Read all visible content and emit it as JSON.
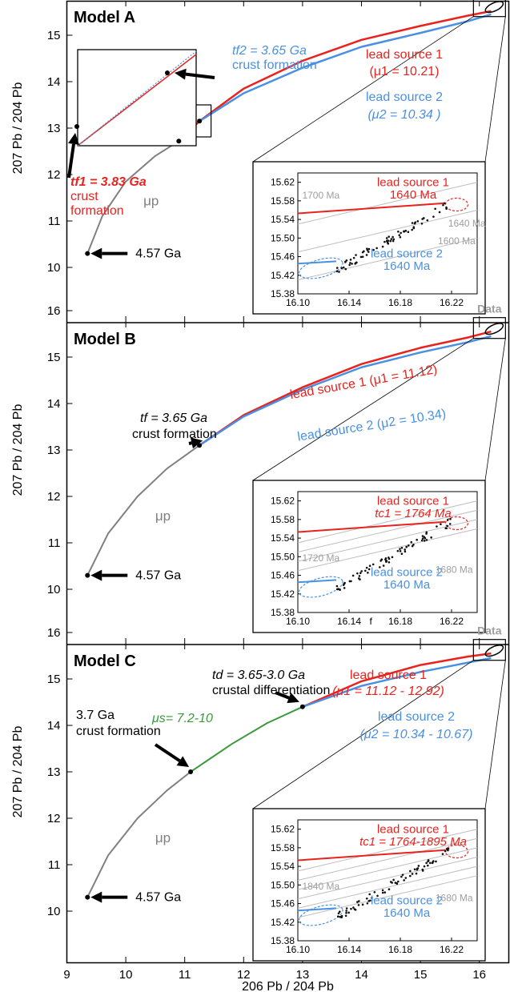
{
  "chart_data": [
    {
      "type": "line",
      "panel_title": "Model A",
      "ylabel": "207 Pb / 204 Pb",
      "xlim": [
        9,
        16.5
      ],
      "ylim": [
        9.8,
        16.4
      ],
      "yticks": [
        "10",
        "11",
        "12",
        "13",
        "14",
        "15",
        "16"
      ],
      "series": [
        {
          "name": "μp",
          "color": "#808080",
          "x": [
            9.35,
            9.6,
            10.0,
            10.5,
            10.9
          ],
          "y": [
            10.3,
            11.1,
            11.85,
            12.4,
            12.72
          ]
        },
        {
          "name": "lead source 1",
          "color": "#e8231e",
          "x": [
            10.9,
            11.25,
            12.0,
            13.0,
            14.0,
            15.0,
            15.8,
            16.2
          ],
          "y": [
            12.72,
            13.15,
            13.85,
            14.45,
            14.9,
            15.2,
            15.42,
            15.52
          ]
        },
        {
          "name": "lead source 2",
          "color": "#4a90e2",
          "x": [
            11.25,
            12.0,
            13.0,
            14.0,
            15.0,
            15.8,
            16.2
          ],
          "y": [
            13.15,
            13.75,
            14.3,
            14.75,
            15.05,
            15.3,
            15.45
          ]
        }
      ],
      "annotations": {
        "data_label": "Data",
        "source1_line1": "lead source 1",
        "source1_line2": "(μ1 = 10.21)",
        "source2_line1": "lead source 2",
        "source2_line2": "(μ2 = 10.34 )",
        "tf2_label": "tf2 = 3.65 Ga",
        "tf2_sub": "crust formation",
        "tf1_label": "tf1 = 3.83 Ga",
        "tf1_sub1": "crust",
        "tf1_sub2": "formation",
        "mu_p": "μp",
        "start_age": "4.57 Ga"
      },
      "inset": {
        "xlim": [
          16.1,
          16.24
        ],
        "ylim": [
          15.38,
          15.64
        ],
        "xticks": [
          "16.10",
          "16.14",
          "16.18",
          "16.22"
        ],
        "yticks": [
          "15.38",
          "15.42",
          "15.46",
          "15.50",
          "15.54",
          "15.58",
          "15.62"
        ],
        "labels": {
          "source1_name": "lead source 1",
          "source1_age": "1640 Ma",
          "source2_name": "lead source 2",
          "source2_age": "1640 Ma",
          "iso_a": "1700 Ma",
          "iso_b": "1640 Ma",
          "iso_c": "1600 Ma"
        }
      }
    },
    {
      "type": "line",
      "panel_title": "Model B",
      "ylabel": "207 Pb / 204 Pb",
      "xlim": [
        9,
        16.5
      ],
      "ylim": [
        9.8,
        16.4
      ],
      "yticks": [
        "10",
        "11",
        "12",
        "13",
        "14",
        "15",
        "16"
      ],
      "series": [
        {
          "name": "μp",
          "color": "#808080",
          "x": [
            9.35,
            9.7,
            10.2,
            10.7,
            11.25
          ],
          "y": [
            10.3,
            11.2,
            12.0,
            12.6,
            13.1
          ]
        },
        {
          "name": "lead source 1",
          "color": "#e8231e",
          "x": [
            11.25,
            12.0,
            13.0,
            14.0,
            15.0,
            15.8,
            16.2
          ],
          "y": [
            13.1,
            13.75,
            14.35,
            14.85,
            15.2,
            15.42,
            15.55
          ]
        },
        {
          "name": "lead source 2",
          "color": "#4a90e2",
          "x": [
            11.25,
            12.0,
            13.0,
            14.0,
            15.0,
            15.8,
            16.2
          ],
          "y": [
            13.1,
            13.72,
            14.3,
            14.78,
            15.1,
            15.32,
            15.45
          ]
        }
      ],
      "annotations": {
        "data_label": "Data",
        "source1": "lead source 1 (μ1 = 11.12)",
        "source2": "lead source 2 (μ2 = 10.34)",
        "tf_label": "tf = 3.65 Ga",
        "tf_sub": "crust formation",
        "mu_p": "μp",
        "start_age": "4.57 Ga"
      },
      "inset": {
        "xlim": [
          16.1,
          16.24
        ],
        "ylim": [
          15.38,
          15.64
        ],
        "xticks": [
          "16.10",
          "16.14",
          "16.18",
          "16.22"
        ],
        "yticks": [
          "15.38",
          "15.42",
          "15.46",
          "15.50",
          "15.54",
          "15.58",
          "15.62"
        ],
        "labels": {
          "source1_name": "lead source 1",
          "source1_age": "tc1 = 1764 Ma",
          "source2_name": "lead source 2",
          "source2_age": "1640 Ma",
          "iso_a": "1720 Ma",
          "iso_c": "1680 Ma",
          "stray": "f"
        }
      }
    },
    {
      "type": "line",
      "panel_title": "Model C",
      "ylabel": "207 Pb / 204 Pb",
      "xlabel": "206 Pb / 204 Pb",
      "xlim": [
        9,
        16.5
      ],
      "ylim": [
        9.8,
        16.4
      ],
      "xticks": [
        "9",
        "10",
        "11",
        "12",
        "13",
        "14",
        "15",
        "16"
      ],
      "yticks": [
        "10",
        "11",
        "12",
        "13",
        "14",
        "15",
        "16"
      ],
      "series": [
        {
          "name": "μp",
          "color": "#808080",
          "x": [
            9.35,
            9.7,
            10.2,
            10.7,
            11.1
          ],
          "y": [
            10.3,
            11.2,
            12.0,
            12.6,
            13.0
          ]
        },
        {
          "name": "μs",
          "color": "#3a9a3a",
          "x": [
            11.1,
            11.8,
            12.4,
            13.0
          ],
          "y": [
            13.0,
            13.6,
            14.05,
            14.4
          ]
        },
        {
          "name": "lead source 1",
          "color": "#e8231e",
          "x": [
            13.0,
            14.0,
            15.0,
            15.8,
            16.2
          ],
          "y": [
            14.4,
            14.95,
            15.3,
            15.48,
            15.55
          ]
        },
        {
          "name": "lead source 2",
          "color": "#4a90e2",
          "x": [
            13.0,
            14.0,
            15.0,
            15.8,
            16.2
          ],
          "y": [
            14.4,
            14.85,
            15.15,
            15.35,
            15.45
          ]
        }
      ],
      "annotations": {
        "data_label": "Data",
        "source1_line1": "lead source 1",
        "source1_line2": "(μ1 = 11.12 - 12.92)",
        "source2_line1": "lead source 2",
        "source2_line2": "(μ2 = 10.34 - 10.67)",
        "td_label": "td = 3.65-3.0 Ga",
        "td_sub": "crustal differentiation",
        "cf_line1": "3.7 Ga",
        "cf_line2": "crust formation",
        "mu_s": "μs= 7.2-10",
        "mu_p": "μp",
        "start_age": "4.57 Ga"
      },
      "inset": {
        "xlim": [
          16.1,
          16.24
        ],
        "ylim": [
          15.38,
          15.64
        ],
        "xticks": [
          "16.10",
          "16.14",
          "16.18",
          "16.22"
        ],
        "yticks": [
          "15.38",
          "15.42",
          "15.46",
          "15.50",
          "15.54",
          "15.58",
          "15.62"
        ],
        "labels": {
          "source1_name": "lead source 1",
          "source1_age": "tc1 = 1764-1895 Ma",
          "source2_name": "lead source 2",
          "source2_age": "1640 Ma",
          "iso_a": "1840 Ma",
          "iso_c": "1680 Ma"
        }
      }
    }
  ],
  "colors": {
    "red": "#e8231e",
    "blue": "#4a90e2",
    "gray": "#808080",
    "green": "#3a9a3a",
    "light_gray": "#bdbdbd"
  }
}
